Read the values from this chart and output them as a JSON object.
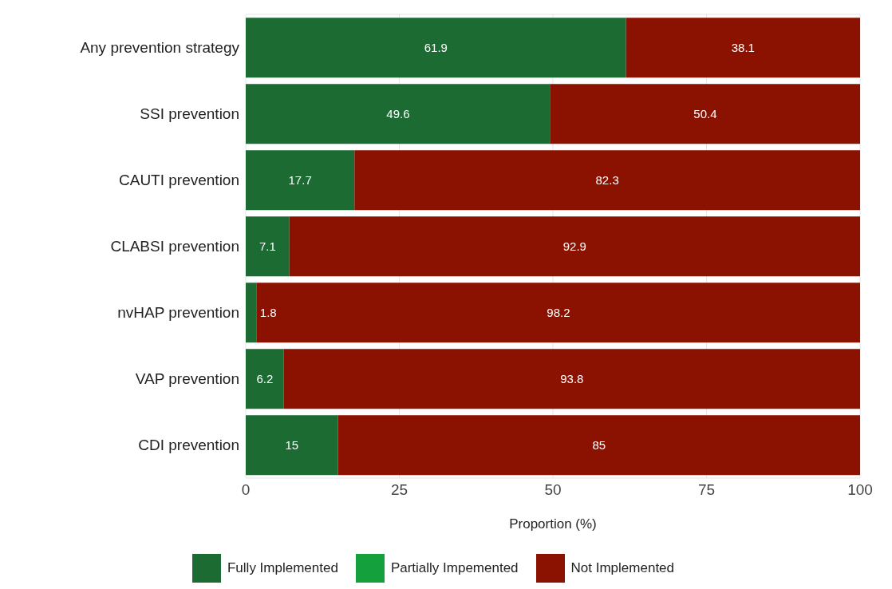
{
  "chart_data": {
    "type": "bar",
    "orientation": "horizontal",
    "stacked": true,
    "xlabel": "Proportion (%)",
    "categories": [
      "Any prevention strategy",
      "SSI prevention",
      "CAUTI prevention",
      "CLABSI prevention",
      "nvHAP prevention",
      "VAP prevention",
      "CDI prevention"
    ],
    "series": [
      {
        "name": "Fully Implemented",
        "color": "#1b6b32",
        "values": [
          61.9,
          49.6,
          17.7,
          7.1,
          1.8,
          6.2,
          15
        ]
      },
      {
        "name": "Partially Impemented",
        "color": "#14a03c",
        "values": [
          null,
          null,
          null,
          null,
          null,
          null,
          null
        ]
      },
      {
        "name": "Not Implemented",
        "color": "#8b1200",
        "values": [
          38.1,
          50.4,
          82.3,
          92.9,
          98.2,
          93.8,
          85
        ]
      }
    ],
    "xlim": [
      0,
      100
    ],
    "xticks": [
      0,
      25,
      50,
      75,
      100
    ],
    "grid": true,
    "legend": "bottom",
    "data_labels": true
  }
}
